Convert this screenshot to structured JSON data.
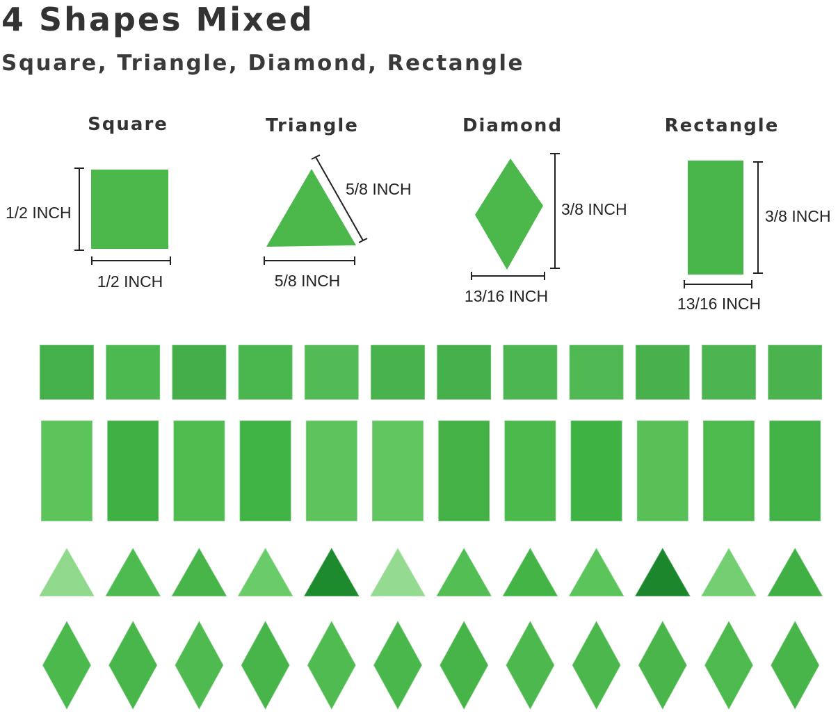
{
  "header": {
    "title": "4 Shapes Mixed",
    "subtitle": "Square, Triangle, Diamond, Rectangle"
  },
  "shapes": [
    {
      "label": "Square",
      "width": "1/2 INCH",
      "height": "1/2 INCH"
    },
    {
      "label": "Triangle",
      "base": "5/8 INCH",
      "side": "5/8 INCH"
    },
    {
      "label": "Diamond",
      "width": "13/16 INCH",
      "height": "3/8 INCH"
    },
    {
      "label": "Rectangle",
      "width": "13/16 INCH",
      "height": "3/8 INCH"
    }
  ],
  "colors": {
    "tile": "#4cb84c",
    "tile_dark": "#2f9a3a",
    "tile_light": "#7fd07f",
    "text": "#333333"
  },
  "tile_rows": [
    {
      "shape": "square",
      "colors": [
        "#43b04a",
        "#4cb850",
        "#44ae4a",
        "#4ab64e",
        "#52bb55",
        "#48b24c",
        "#45b04a",
        "#4cb651",
        "#4fb853",
        "#48b14c",
        "#4cb550",
        "#4ab34e"
      ]
    },
    {
      "shape": "rectangle",
      "colors": [
        "#5cc45a",
        "#3fb043",
        "#50bc50",
        "#3fb344",
        "#5ec35d",
        "#62c660",
        "#44b147",
        "#4cb94d",
        "#3eb243",
        "#58c057",
        "#4cba4d",
        "#43b246"
      ]
    },
    {
      "shape": "triangle",
      "colors": [
        "#8fd88c",
        "#4dbb4f",
        "#47b54a",
        "#6acb69",
        "#1e8a2e",
        "#94da90",
        "#52be53",
        "#44b447",
        "#5bc45b",
        "#1b862b",
        "#74cf72",
        "#40b044"
      ]
    },
    {
      "shape": "diamond",
      "colors": [
        "#4cb94d",
        "#49b64b",
        "#4fba50",
        "#48b54a",
        "#50bb51",
        "#4ab74c",
        "#47b449",
        "#4cb84d",
        "#4bb74c",
        "#49b54b",
        "#4db94e",
        "#48b54a"
      ]
    }
  ]
}
